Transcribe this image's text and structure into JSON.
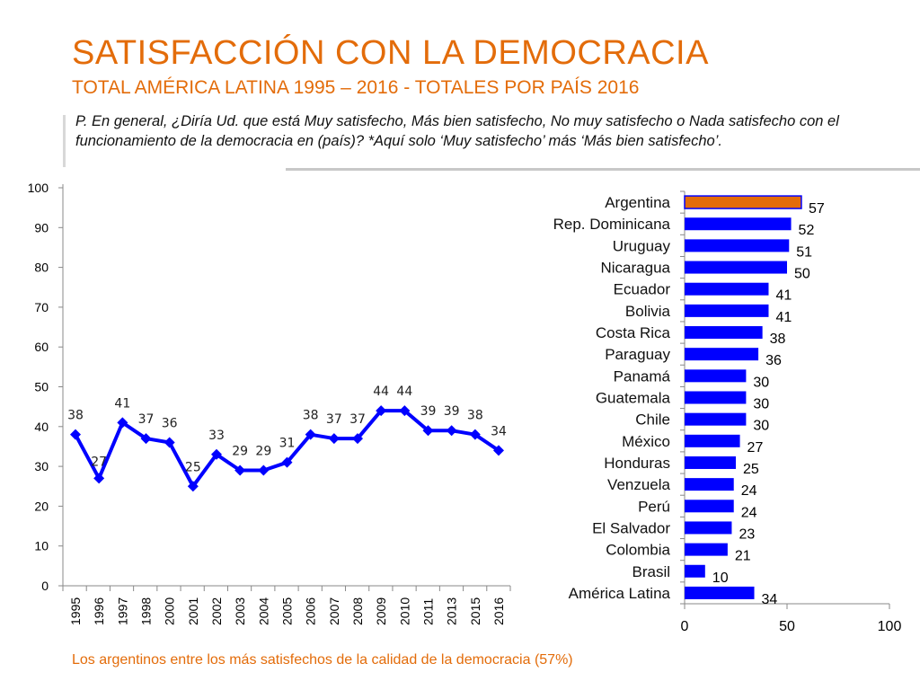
{
  "title": "SATISFACCIÓN CON LA DEMOCRACIA",
  "subtitle": "TOTAL AMÉRICA LATINA 1995 – 2016 - TOTALES POR PAÍS 2016",
  "question": "P. En general, ¿Diría Ud. que está Muy satisfecho, Más bien satisfecho, No muy satisfecho o Nada satisfecho con el funcionamiento de la democracia en (país)? *Aquí  solo ‘Muy satisfecho’ más ‘Más bien satisfecho’.",
  "footer": "Los argentinos entre los más satisfechos de la calidad de la democracia (57%)",
  "colors": {
    "accent": "#E36C0A",
    "series": "#0000FF",
    "highlight": "#E36C0A"
  },
  "chart_data": [
    {
      "type": "line",
      "title": "",
      "x": [
        "1995",
        "1996",
        "1997",
        "1998",
        "2000",
        "2001",
        "2002",
        "2003",
        "2004",
        "2005",
        "2006",
        "2007",
        "2008",
        "2009",
        "2010",
        "2011",
        "2013",
        "2015",
        "2016"
      ],
      "values": [
        38,
        27,
        41,
        37,
        36,
        25,
        33,
        29,
        29,
        31,
        38,
        37,
        37,
        44,
        44,
        39,
        39,
        38,
        34
      ],
      "yticks": [
        0,
        10,
        20,
        30,
        40,
        50,
        60,
        70,
        80,
        90,
        100
      ],
      "ylim": [
        0,
        100
      ],
      "xlabel": "",
      "ylabel": ""
    },
    {
      "type": "bar",
      "orientation": "horizontal",
      "categories": [
        "Argentina",
        "Rep. Dominicana",
        "Uruguay",
        "Nicaragua",
        "Ecuador",
        "Bolivia",
        "Costa Rica",
        "Paraguay",
        "Panamá",
        "Guatemala",
        "Chile",
        "México",
        "Honduras",
        "Venzuela",
        "Perú",
        "El Salvador",
        "Colombia",
        "Brasil",
        "América Latina"
      ],
      "values": [
        57,
        52,
        51,
        50,
        41,
        41,
        38,
        36,
        30,
        30,
        30,
        27,
        25,
        24,
        24,
        23,
        21,
        10,
        34
      ],
      "highlight": "Argentina",
      "xticks": [
        0,
        50,
        100
      ],
      "xlim": [
        0,
        100
      ]
    }
  ]
}
